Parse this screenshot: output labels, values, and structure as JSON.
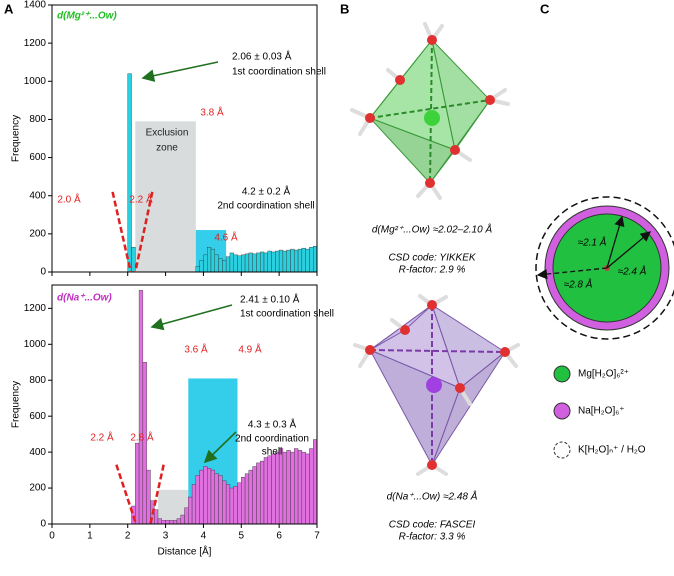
{
  "chart_data": [
    {
      "type": "histogram",
      "title": "d(Mg²⁺...Ow)",
      "title_color": "#22c022",
      "color": "#2ad0e0",
      "bins": [
        0,
        0.1,
        0.2,
        0.3,
        0.4,
        0.5,
        0.6,
        0.7,
        0.8,
        0.9,
        1,
        1.1,
        1.2,
        1.3,
        1.4,
        1.5,
        1.6,
        1.7,
        1.8,
        1.9,
        2,
        2.1,
        2.2,
        2.3,
        2.4,
        2.5,
        2.6,
        2.7,
        2.8,
        2.9,
        3,
        3.1,
        3.2,
        3.3,
        3.4,
        3.5,
        3.6,
        3.7,
        3.8,
        3.9,
        4,
        4.1,
        4.2,
        4.3,
        4.4,
        4.5,
        4.6,
        4.7,
        4.8,
        4.9,
        5,
        5.1,
        5.2,
        5.3,
        5.4,
        5.5,
        5.6,
        5.7,
        5.8,
        5.9,
        6,
        6.1,
        6.2,
        6.3,
        6.4,
        6.5,
        6.6,
        6.7,
        6.8,
        6.9,
        7
      ],
      "values": [
        0,
        0,
        0,
        0,
        0,
        0,
        0,
        0,
        0,
        0,
        0,
        0,
        0,
        0,
        0,
        0,
        0,
        0,
        0,
        0,
        1040,
        130,
        0,
        0,
        0,
        0,
        0,
        0,
        0,
        0,
        0,
        0,
        0,
        0,
        0,
        0,
        0,
        0,
        30,
        60,
        90,
        130,
        120,
        90,
        70,
        60,
        80,
        100,
        90,
        85,
        90,
        95,
        100,
        95,
        100,
        105,
        100,
        110,
        105,
        110,
        115,
        110,
        115,
        120,
        115,
        120,
        125,
        120,
        130,
        135
      ],
      "ylim": [
        0,
        1400
      ],
      "yticks": [
        0,
        200,
        400,
        600,
        800,
        1000,
        1200,
        1400
      ],
      "xlim": [
        0,
        7
      ],
      "xticks": [
        0,
        1,
        2,
        3,
        4,
        5,
        6,
        7
      ],
      "ylabel": "Frequency",
      "shaded_regions": [
        {
          "x0": 2.2,
          "x1": 3.8,
          "top": 790,
          "color": "#d4d8d8"
        },
        {
          "x0": 3.8,
          "x1": 4.6,
          "top": 220,
          "color": "#1ec8e8"
        }
      ],
      "annotations": [
        {
          "text": "2.06 ± 0.03 Å",
          "color": "#000"
        },
        {
          "text": "1st coordination shell",
          "color": "#000"
        },
        {
          "text": "Exclusion",
          "color": "#222"
        },
        {
          "text": "zone",
          "color": "#222"
        },
        {
          "text": "3.8 Å",
          "color": "#e02020"
        },
        {
          "text": "2.0 Å",
          "color": "#e02020"
        },
        {
          "text": "2.2 Å",
          "color": "#e02020"
        },
        {
          "text": "4.2 ± 0.2 Å",
          "color": "#000"
        },
        {
          "text": "2nd coordination shell",
          "color": "#000"
        },
        {
          "text": "4.6 Å",
          "color": "#e02020"
        }
      ]
    },
    {
      "type": "histogram",
      "title": "d(Na⁺...Ow)",
      "title_color": "#c030c0",
      "color": "#e070e0",
      "bins": [
        0,
        0.1,
        0.2,
        0.3,
        0.4,
        0.5,
        0.6,
        0.7,
        0.8,
        0.9,
        1,
        1.1,
        1.2,
        1.3,
        1.4,
        1.5,
        1.6,
        1.7,
        1.8,
        1.9,
        2,
        2.1,
        2.2,
        2.3,
        2.4,
        2.5,
        2.6,
        2.7,
        2.8,
        2.9,
        3,
        3.1,
        3.2,
        3.3,
        3.4,
        3.5,
        3.6,
        3.7,
        3.8,
        3.9,
        4,
        4.1,
        4.2,
        4.3,
        4.4,
        4.5,
        4.6,
        4.7,
        4.8,
        4.9,
        5,
        5.1,
        5.2,
        5.3,
        5.4,
        5.5,
        5.6,
        5.7,
        5.8,
        5.9,
        6,
        6.1,
        6.2,
        6.3,
        6.4,
        6.5,
        6.6,
        6.7,
        6.8,
        6.9,
        7
      ],
      "values": [
        0,
        0,
        0,
        0,
        0,
        0,
        0,
        0,
        0,
        0,
        0,
        0,
        0,
        0,
        0,
        0,
        0,
        0,
        0,
        0,
        0,
        100,
        450,
        1300,
        900,
        300,
        130,
        80,
        30,
        20,
        20,
        20,
        20,
        30,
        50,
        90,
        150,
        220,
        270,
        300,
        320,
        310,
        300,
        280,
        270,
        240,
        220,
        200,
        210,
        230,
        260,
        280,
        300,
        320,
        340,
        350,
        370,
        380,
        390,
        400,
        420,
        400,
        410,
        400,
        420,
        410,
        400,
        390,
        420,
        470
      ],
      "ylim": [
        0,
        1330
      ],
      "yticks": [
        0,
        200,
        400,
        600,
        800,
        1000,
        1200
      ],
      "xlim": [
        0,
        7
      ],
      "xticks": [
        0,
        1,
        2,
        3,
        4,
        5,
        6,
        7
      ],
      "ylabel": "Frequency",
      "xlabel": "Distance [Å]",
      "shaded_regions": [
        {
          "x0": 2.8,
          "x1": 3.6,
          "top": 190,
          "color": "#d4d8d8"
        },
        {
          "x0": 3.6,
          "x1": 4.9,
          "top": 810,
          "color": "#1ec8e8"
        }
      ],
      "annotations": [
        {
          "text": "2.41 ± 0.10 Å",
          "color": "#000"
        },
        {
          "text": "1st coordination shell",
          "color": "#000"
        },
        {
          "text": "3.6 Å",
          "color": "#e02020"
        },
        {
          "text": "4.9 Å",
          "color": "#e02020"
        },
        {
          "text": "4.3 ± 0.3 Å",
          "color": "#000"
        },
        {
          "text": "2nd coordination",
          "color": "#000"
        },
        {
          "text": "shell",
          "color": "#000"
        },
        {
          "text": "2.2 Å",
          "color": "#e02020"
        },
        {
          "text": "2.8 Å",
          "color": "#e02020"
        }
      ]
    }
  ],
  "panel_labels": [
    "A",
    "B",
    "C"
  ],
  "panel_b": {
    "mg": {
      "distance": "d(Mg²⁺...Ow) ≈2.02–2.10 Å",
      "code": "CSD code: YIKKEK",
      "rfactor": "R-factor: 2.9 %"
    },
    "na": {
      "distance": "d(Na⁺...Ow) ≈2.48 Å",
      "code": "CSD code: FASCEI",
      "rfactor": "R-factor: 3.3 %"
    }
  },
  "panel_c": {
    "radii": [
      "≈2.1 Å",
      "≈2.4 Å",
      "≈2.8 Å"
    ],
    "legend": [
      "Mg[H₂O]₆²⁺",
      "Na[H₂O]₆⁺",
      "K[H₂O]ₙ⁺ / H₂O"
    ]
  }
}
